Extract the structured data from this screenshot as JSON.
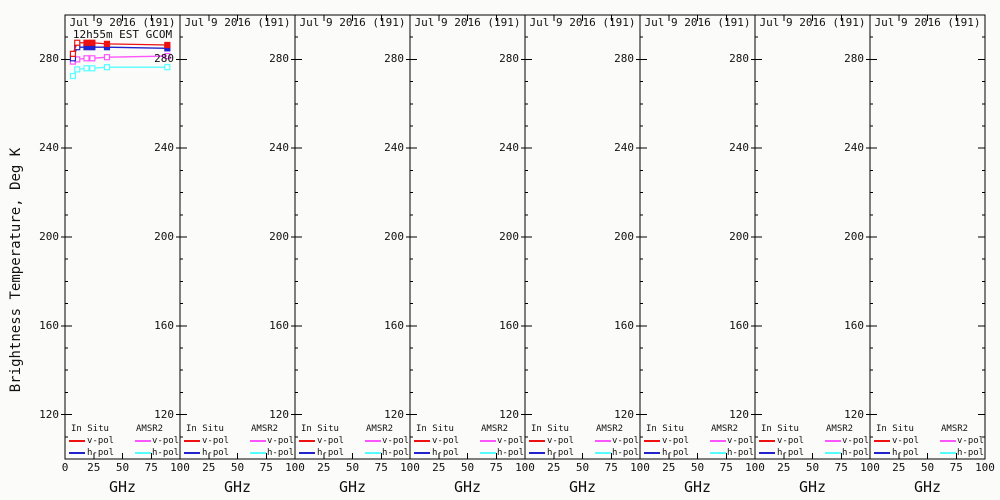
{
  "figure": {
    "ylabel": "Brightness Temperature, Deg K",
    "xlabel": "GHz",
    "background": "#fbfbfa",
    "axis_color": "#000000",
    "y_range": [
      100,
      300
    ],
    "y_major_ticks": [
      120,
      160,
      200,
      240,
      280
    ],
    "y_minor_step": 10,
    "x_range": [
      0,
      100
    ],
    "x_major_ticks": [
      0,
      25,
      50,
      75,
      100
    ],
    "panel_count": 8,
    "panels": [
      {
        "title": "Jul 9 2016 (191)",
        "subtitle": "12h55m EST GCOM",
        "has_data": true
      },
      {
        "title": "Jul 9 2016 (191)",
        "subtitle": "",
        "has_data": false
      },
      {
        "title": "Jul 9 2016 (191)",
        "subtitle": "",
        "has_data": false
      },
      {
        "title": "Jul 9 2016 (191)",
        "subtitle": "",
        "has_data": false
      },
      {
        "title": "Jul 9 2016 (191)",
        "subtitle": "",
        "has_data": false
      },
      {
        "title": "Jul 9 2016 (191)",
        "subtitle": "",
        "has_data": false
      },
      {
        "title": "Jul 9 2016 (191)",
        "subtitle": "",
        "has_data": false
      },
      {
        "title": "Jul 9 2016 (191)",
        "subtitle": "",
        "has_data": false
      }
    ],
    "legend": {
      "columns": [
        {
          "header": "In Situ",
          "rows": [
            {
              "label": "v-pol",
              "color": "#ee1111"
            },
            {
              "label": "h-pol",
              "color": "#2222cc"
            }
          ]
        },
        {
          "header": "AMSR2",
          "rows": [
            {
              "label": "v-pol",
              "color": "#ff55ff"
            },
            {
              "label": "h-pol",
              "color": "#55ffff"
            }
          ]
        }
      ]
    }
  },
  "chart_data": {
    "type": "line",
    "title": "Jul 9 2016 (191)",
    "subtitle": "12h55m EST GCOM",
    "xlabel": "GHz",
    "ylabel": "Brightness Temperature, Deg K",
    "xlim": [
      0,
      100
    ],
    "ylim": [
      100,
      300
    ],
    "x_ticks": [
      0,
      25,
      50,
      75,
      100
    ],
    "y_ticks": [
      120,
      160,
      200,
      240,
      280
    ],
    "grid": false,
    "legend_position": "bottom-inside-each-panel",
    "panel_count": 8,
    "data_panel_index": 0,
    "empty_panel_indices": [
      1,
      2,
      3,
      4,
      5,
      6,
      7
    ],
    "x": [
      6.9,
      10.65,
      18.7,
      23.8,
      36.5,
      89.0
    ],
    "series": [
      {
        "name": "In Situ v-pol",
        "color": "#ee1111",
        "marker": "square",
        "open_markers": [
          true,
          true,
          false,
          false,
          false,
          false
        ],
        "values": [
          282.5,
          287.5,
          287.5,
          287.5,
          287.0,
          286.5
        ]
      },
      {
        "name": "In Situ h-pol",
        "color": "#2222cc",
        "marker": "square",
        "open_markers": [
          true,
          true,
          false,
          false,
          false,
          false
        ],
        "values": [
          280.5,
          285.5,
          285.5,
          285.5,
          285.5,
          285.0
        ]
      },
      {
        "name": "AMSR2 v-pol",
        "color": "#ff55ff",
        "marker": "square",
        "open_markers": [
          true,
          true,
          true,
          true,
          true,
          true
        ],
        "values": [
          279.0,
          280.0,
          280.5,
          280.5,
          281.0,
          281.5
        ]
      },
      {
        "name": "AMSR2 h-pol",
        "color": "#55ffff",
        "marker": "square",
        "open_markers": [
          true,
          true,
          true,
          true,
          true,
          true
        ],
        "values": [
          272.5,
          275.5,
          276.0,
          276.0,
          276.5,
          276.5
        ]
      }
    ]
  }
}
